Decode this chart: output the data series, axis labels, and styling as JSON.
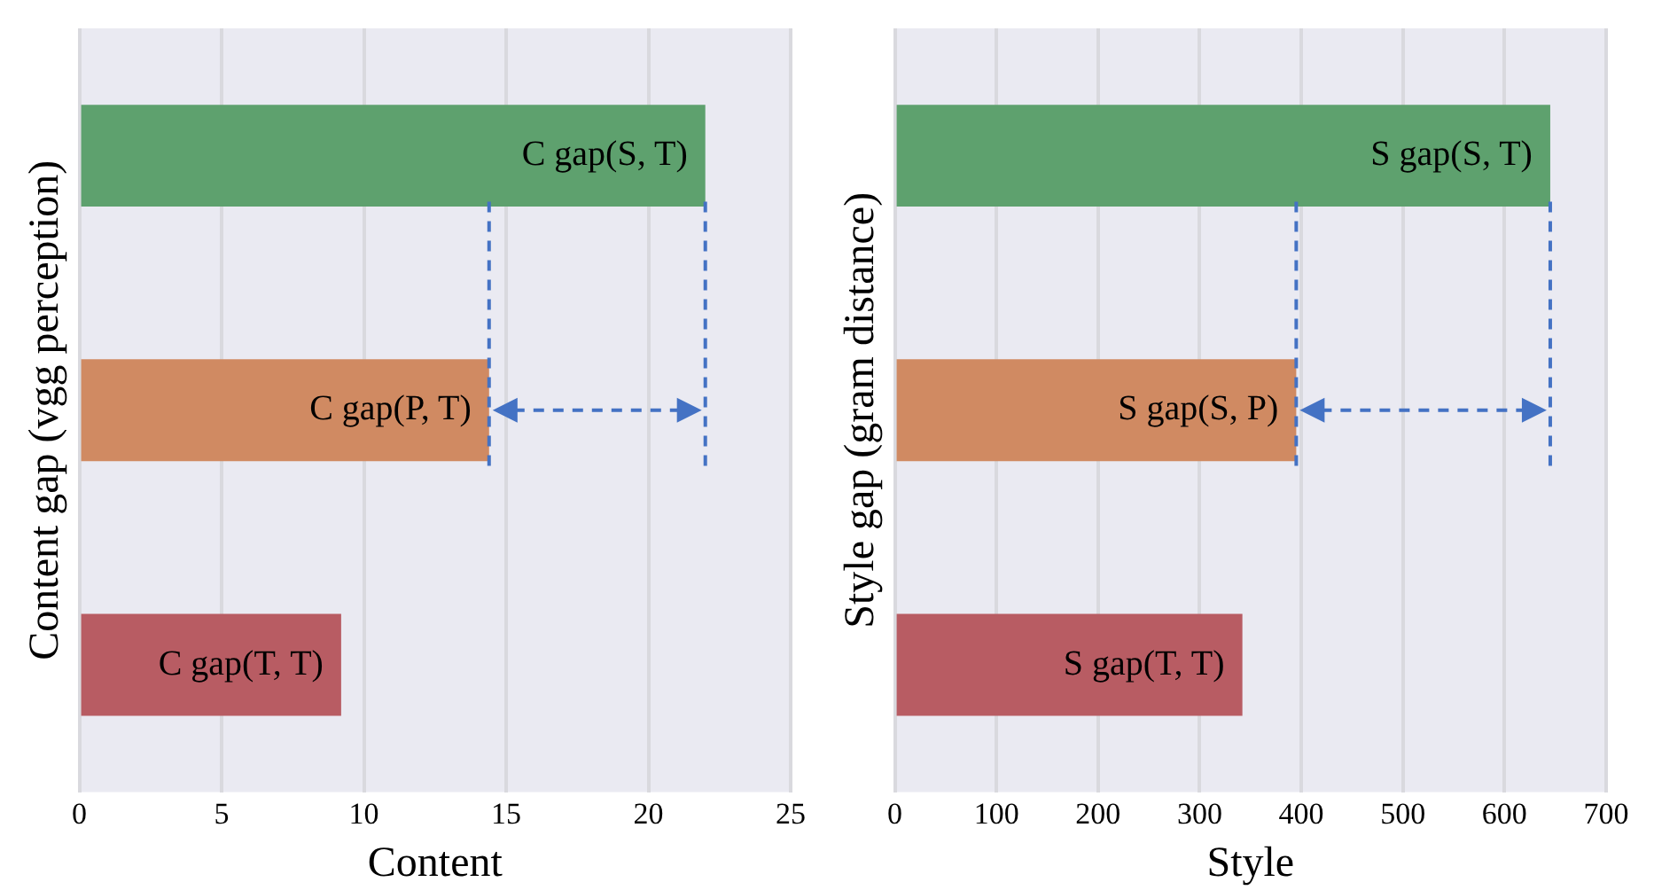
{
  "chart_data": [
    {
      "type": "bar",
      "orientation": "horizontal",
      "categories": [
        "C gap(S, T)",
        "C gap(P, T)",
        "C gap(T, T)"
      ],
      "values": [
        22,
        14.4,
        9.2
      ],
      "colors": [
        "#5ea16e",
        "#d08a62",
        "#b85c63"
      ],
      "xlim": [
        0,
        25
      ],
      "xticks": [
        0,
        5,
        10,
        15,
        20,
        25
      ],
      "xlabel": "Content",
      "ylabel": "Content gap (vgg perception)",
      "grid": "x",
      "tick_labels": "x",
      "ref_lines": [
        {
          "axis": "x",
          "value": 14.4,
          "color": "#4472c4",
          "line_style": "dashed"
        },
        {
          "axis": "x",
          "value": 22,
          "color": "#4472c4",
          "line_style": "dashed"
        }
      ]
    },
    {
      "type": "bar",
      "orientation": "horizontal",
      "categories": [
        "S gap(S, T)",
        "S gap(S, P)",
        "S gap(T, T)"
      ],
      "values": [
        645,
        395,
        342
      ],
      "colors": [
        "#5ea16e",
        "#d08a62",
        "#b85c63"
      ],
      "xlim": [
        0,
        700
      ],
      "xticks": [
        0,
        100,
        200,
        300,
        400,
        500,
        600,
        700
      ],
      "xlabel": "Style",
      "ylabel": "Style gap (gram distance)",
      "grid": "x",
      "tick_labels": "x",
      "ref_lines": [
        {
          "axis": "x",
          "value": 395,
          "color": "#4472c4",
          "line_style": "dashed"
        },
        {
          "axis": "x",
          "value": 645,
          "color": "#4472c4",
          "line_style": "dashed"
        }
      ]
    }
  ]
}
